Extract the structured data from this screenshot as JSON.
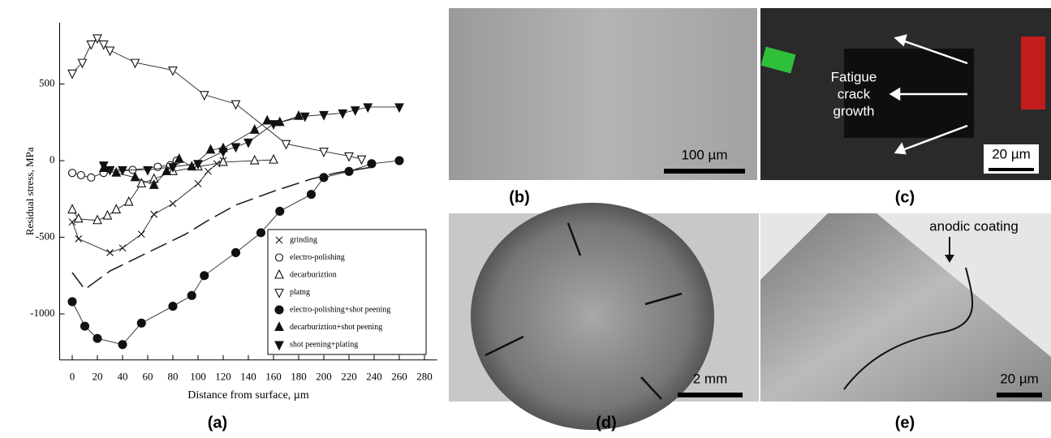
{
  "chart_data": {
    "type": "line",
    "xlabel": "Distance from surface, µm",
    "ylabel": "Residual stress, MPa",
    "xlim": [
      -10,
      290
    ],
    "ylim": [
      -1300,
      900
    ],
    "xticks": [
      0,
      20,
      40,
      60,
      80,
      100,
      120,
      140,
      160,
      180,
      200,
      220,
      240,
      260,
      280
    ],
    "yticks": [
      -1000,
      -500,
      0,
      500
    ],
    "series": [
      {
        "name": "grinding",
        "marker": "x",
        "color": "#222222",
        "x": [
          0,
          5,
          30,
          40,
          55,
          65,
          80,
          100,
          108,
          115,
          120
        ],
        "values": [
          -400,
          -510,
          -600,
          -570,
          -480,
          -350,
          -280,
          -150,
          -70,
          -20,
          0
        ]
      },
      {
        "name": "electro-polishing",
        "marker": "o",
        "color": "#222222",
        "x": [
          0,
          7,
          15,
          25,
          48,
          68,
          78,
          83
        ],
        "values": [
          -80,
          -95,
          -110,
          -80,
          -60,
          -40,
          -30,
          0
        ]
      },
      {
        "name": "decarburiztion",
        "marker": "^",
        "color": "#222222",
        "x": [
          0,
          5,
          20,
          28,
          35,
          45,
          55,
          65,
          80,
          100,
          120,
          145,
          160
        ],
        "values": [
          -320,
          -380,
          -390,
          -360,
          -320,
          -270,
          -150,
          -120,
          -70,
          -40,
          -10,
          0,
          5
        ]
      },
      {
        "name": "platng",
        "marker": "v",
        "color": "#222222",
        "x": [
          0,
          8,
          15,
          20,
          25,
          30,
          50,
          80,
          105,
          130,
          170,
          200,
          220,
          230
        ],
        "values": [
          570,
          640,
          760,
          800,
          760,
          720,
          640,
          590,
          430,
          370,
          110,
          60,
          30,
          10
        ]
      },
      {
        "name": "electro-polishing+shot peening",
        "marker": "filled-o",
        "color": "#222222",
        "x": [
          0,
          10,
          20,
          40,
          55,
          80,
          95,
          105,
          130,
          150,
          165,
          190,
          200,
          220,
          238,
          260
        ],
        "values": [
          -920,
          -1080,
          -1160,
          -1200,
          -1060,
          -950,
          -880,
          -750,
          -600,
          -470,
          -330,
          -220,
          -110,
          -70,
          -20,
          0
        ]
      },
      {
        "name": "decarburiztion+shot peening",
        "marker": "filled-^",
        "color": "#222222",
        "x": [
          25,
          35,
          50,
          65,
          75,
          85,
          95,
          110,
          120,
          145,
          155,
          165,
          180
        ],
        "values": [
          -50,
          -80,
          -110,
          -160,
          -70,
          10,
          -40,
          70,
          80,
          200,
          260,
          250,
          290
        ]
      },
      {
        "name": "shot peening+plating",
        "marker": "filled-v",
        "color": "#222222",
        "x": [
          25,
          30,
          40,
          60,
          80,
          100,
          120,
          130,
          140,
          160,
          185,
          200,
          215,
          225,
          235,
          260
        ],
        "values": [
          -30,
          -60,
          -60,
          -60,
          -40,
          -20,
          60,
          90,
          120,
          240,
          290,
          300,
          310,
          330,
          350,
          350
        ]
      },
      {
        "marker": "none",
        "dash": true,
        "color": "#222222",
        "x": [
          0,
          10,
          30,
          60,
          90,
          110,
          130,
          160,
          190,
          210,
          240
        ],
        "values": [
          -730,
          -840,
          -720,
          -600,
          -480,
          -380,
          -290,
          -200,
          -120,
          -80,
          -40
        ]
      }
    ]
  },
  "chart_label": "(a)",
  "panels": [
    {
      "label": "(b)",
      "scale": "100 µm"
    },
    {
      "label": "(c)",
      "scale": "20 µm",
      "annotation": [
        "Fatigue",
        "crack",
        "growth"
      ]
    },
    {
      "label": "(d)",
      "scale": "2 mm"
    },
    {
      "label": "(e)",
      "scale": "20 µm",
      "annotation": [
        "anodic coating"
      ]
    }
  ]
}
